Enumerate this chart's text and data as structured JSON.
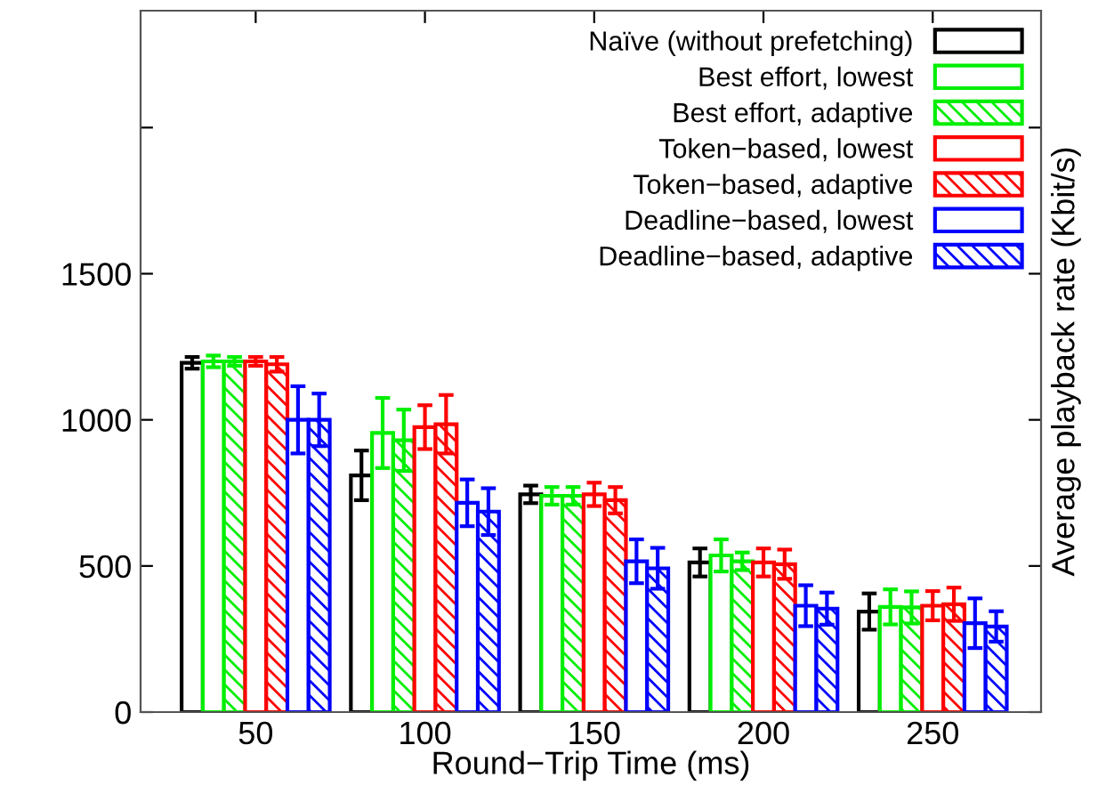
{
  "chart_data": {
    "type": "bar",
    "xlabel": "Round−Trip Time (ms)",
    "ylabel": "Average playback rate (Kbit/s)",
    "categories": [
      "50",
      "100",
      "150",
      "200",
      "250"
    ],
    "ylim": [
      0,
      2400
    ],
    "yticks": [
      0,
      500,
      1000,
      1500,
      {
        "value": 2000,
        "label": null
      }
    ],
    "grid": false,
    "legend": "top right",
    "series": [
      {
        "name": "Naïve (without prefetching)",
        "color": "#000000",
        "values": [
          1195,
          810,
          745,
          512,
          344
        ],
        "errors": [
          20,
          85,
          30,
          48,
          62
        ]
      },
      {
        "name": "Best effort, lowest",
        "color": "#00ee00",
        "values": [
          1200,
          955,
          740,
          536,
          360
        ],
        "errors": [
          20,
          120,
          30,
          55,
          60
        ]
      },
      {
        "name": "Best effort, adaptive",
        "color": "#00ee00",
        "values": [
          1200,
          930,
          740,
          516,
          358
        ],
        "errors": [
          15,
          105,
          30,
          30,
          55
        ]
      },
      {
        "name": "Token−based, lowest",
        "color": "#ff0000",
        "values": [
          1200,
          975,
          745,
          512,
          364
        ],
        "errors": [
          15,
          75,
          40,
          48,
          50
        ]
      },
      {
        "name": "Token−based, adaptive",
        "color": "#ff0000",
        "values": [
          1190,
          985,
          725,
          506,
          369
        ],
        "errors": [
          25,
          100,
          45,
          50,
          57
        ]
      },
      {
        "name": "Deadline−based, lowest",
        "color": "#0000ff",
        "values": [
          1000,
          716,
          516,
          364,
          304
        ],
        "errors": [
          115,
          80,
          75,
          70,
          85
        ]
      },
      {
        "name": "Deadline−based, adaptive",
        "color": "#0000ff",
        "values": [
          1000,
          686,
          492,
          354,
          293
        ],
        "errors": [
          90,
          80,
          70,
          55,
          52
        ]
      }
    ]
  }
}
